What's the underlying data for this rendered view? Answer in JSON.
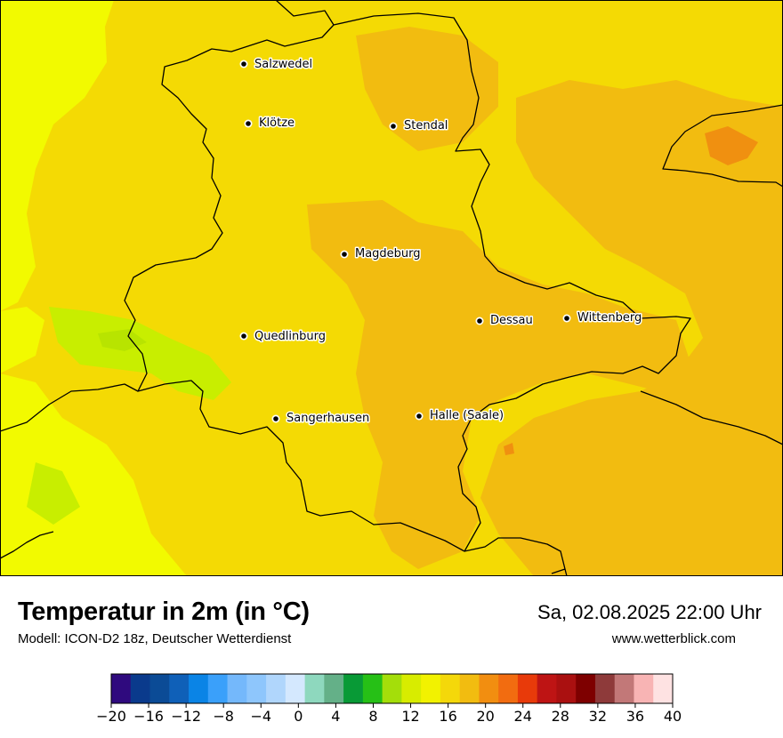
{
  "title": "Temperatur in 2m (in °C)",
  "model": "Modell: ICON-D2 18z, Deutscher Wetterdienst",
  "datetime": "Sa, 02.08.2025 22:00 Uhr",
  "website": "www.wetterblick.com",
  "cities": [
    {
      "name": "Salzwedel",
      "id": "salzwedel"
    },
    {
      "name": "Klötze",
      "id": "kloetze"
    },
    {
      "name": "Stendal",
      "id": "stendal"
    },
    {
      "name": "Magdeburg",
      "id": "magdeburg"
    },
    {
      "name": "Dessau",
      "id": "dessau"
    },
    {
      "name": "Wittenberg",
      "id": "wittenberg"
    },
    {
      "name": "Quedlinburg",
      "id": "quedlinburg"
    },
    {
      "name": "Sangerhausen",
      "id": "sangerhausen"
    },
    {
      "name": "Halle (Saale)",
      "id": "halle"
    }
  ],
  "legend": {
    "min": -20,
    "max": 40,
    "step": 2,
    "tick_labels": [
      "−20",
      "−16",
      "−12",
      "−8",
      "−4",
      "0",
      "4",
      "8",
      "12",
      "16",
      "20",
      "24",
      "28",
      "32",
      "36",
      "40"
    ],
    "colors": [
      "#2f0a7e",
      "#0a3a8c",
      "#0b4b96",
      "#0f60b8",
      "#0a84e6",
      "#3aa0fa",
      "#74b8fb",
      "#8ec6fc",
      "#b0d6fc",
      "#d4e8fe",
      "#8ed8be",
      "#64b088",
      "#089a36",
      "#26c016",
      "#a4de0a",
      "#d8ec00",
      "#f2f200",
      "#f4d80a",
      "#f2bc10",
      "#f28e10",
      "#f26c10",
      "#e83a0a",
      "#be1414",
      "#aa1010",
      "#7e0000",
      "#8e3a3a",
      "#c27878",
      "#f8b4b4",
      "#fee2e2"
    ]
  },
  "map_colors": {
    "bright_yellow": "#f2fa00",
    "yellow": "#f4da04",
    "orange_yellow": "#f2bc10",
    "orange": "#f09010",
    "green_yellow": "#c8ee00",
    "border": "#000000"
  }
}
